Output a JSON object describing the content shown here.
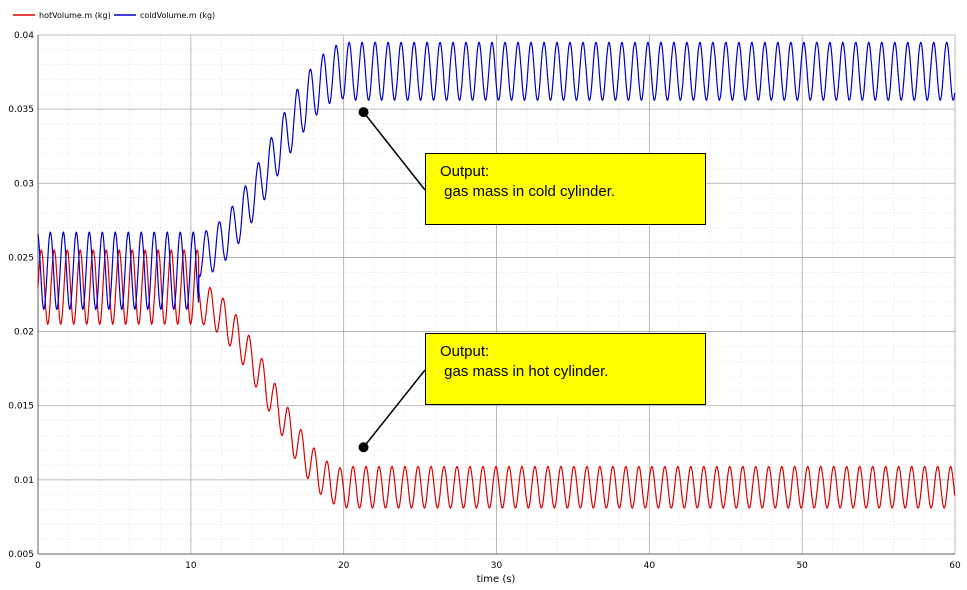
{
  "chart_data": {
    "type": "line",
    "title": "",
    "xlabel": "time (s)",
    "ylabel": "",
    "xlim": [
      0,
      60
    ],
    "ylim": [
      0.005,
      0.04
    ],
    "x_ticks": [
      "0",
      "10",
      "20",
      "30",
      "40",
      "50",
      "60"
    ],
    "y_ticks": [
      "0.04",
      "0.035",
      "0.03",
      "0.025",
      "0.02",
      "0.015",
      "0.01",
      "0.005"
    ],
    "grid": true,
    "legend_position": "top-left",
    "series": [
      {
        "name": "hotVolume.m (kg)",
        "color": "#dd0000",
        "description": "oscillation ~0.85 s period; steady 0.0205-0.0255 until t=10.5, then decays to 0.008-0.011 after t~20",
        "segments": [
          {
            "t_start": 0,
            "t_end": 10.5,
            "min": 0.0205,
            "max": 0.0255
          },
          {
            "t_start": 10.5,
            "t_end": 20,
            "min_start": 0.0205,
            "max_start": 0.0232,
            "min_end": 0.0082,
            "max_end": 0.0108
          },
          {
            "t_start": 20,
            "t_end": 60,
            "min": 0.0081,
            "max": 0.0109
          }
        ],
        "period": 0.85
      },
      {
        "name": "coldVolume.m (kg)",
        "color": "#0000cc",
        "description": "oscillation ~0.85 s period; steady 0.0215-0.0267 until t=10.5, then rises to 0.0357-0.0395 after t~20",
        "segments": [
          {
            "t_start": 0,
            "t_end": 10.5,
            "min": 0.0215,
            "max": 0.0267
          },
          {
            "t_start": 10.5,
            "t_end": 20,
            "min_start": 0.0237,
            "max_start": 0.0267,
            "min_end": 0.0357,
            "max_end": 0.0394
          },
          {
            "t_start": 20,
            "t_end": 60,
            "min": 0.0356,
            "max": 0.0395
          }
        ],
        "period": 0.85
      }
    ],
    "annotations": [
      {
        "line1": "Output:",
        "line2": " gas mass in cold cylinder.",
        "point_x": 21.3,
        "point_y": 0.0348
      },
      {
        "line1": "Output:",
        "line2": " gas mass in hot cylinder.",
        "point_x": 21.3,
        "point_y": 0.0122
      }
    ]
  }
}
